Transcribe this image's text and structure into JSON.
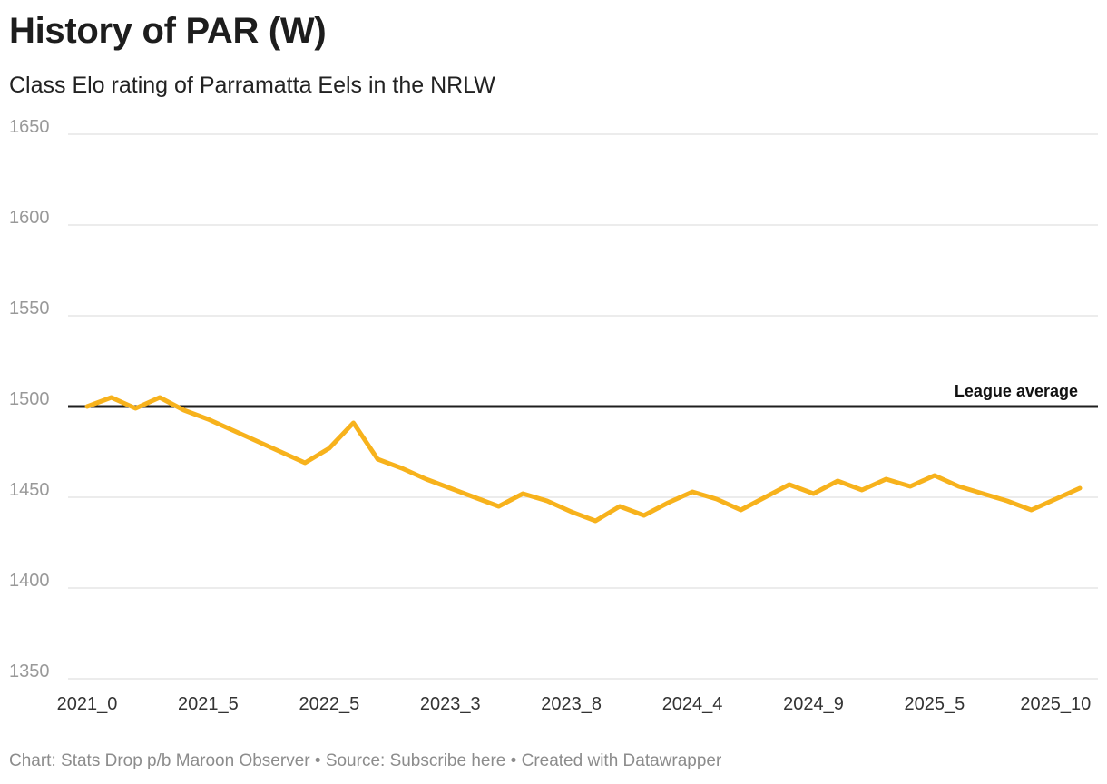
{
  "header": {
    "title": "History of PAR (W)",
    "subtitle": "Class Elo rating of Parramatta Eels in the NRLW"
  },
  "footer": {
    "chart_credit": "Chart: Stats Drop p/b Maroon Observer",
    "separator": "•",
    "source": "Source: Subscribe here",
    "created_with": "Created with Datawrapper"
  },
  "colors": {
    "line": "#f7b21c",
    "reference": "#1f1f1f",
    "grid": "#e0e0e0",
    "tick_text": "#999999"
  },
  "chart_data": {
    "type": "line",
    "title": "History of PAR (W)",
    "subtitle": "Class Elo rating of Parramatta Eels in the NRLW",
    "xlabel": "",
    "ylabel": "",
    "ylim": [
      1350,
      1650
    ],
    "grid": true,
    "y_ticks": [
      1350,
      1400,
      1450,
      1500,
      1550,
      1600,
      1650
    ],
    "x_tick_labels": [
      "2021_0",
      "2021_5",
      "2022_5",
      "2023_3",
      "2023_8",
      "2024_4",
      "2024_9",
      "2025_5",
      "2025_10"
    ],
    "x_tick_indices": [
      0,
      5,
      10,
      15,
      20,
      25,
      30,
      35,
      40
    ],
    "reference_line": {
      "value": 1500,
      "label": "League average"
    },
    "series": [
      {
        "name": "PAR (W)",
        "values": [
          1500,
          1505,
          1499,
          1505,
          1498,
          1493,
          1487,
          1481,
          1475,
          1469,
          1477,
          1491,
          1471,
          1466,
          1460,
          1455,
          1450,
          1445,
          1452,
          1448,
          1442,
          1437,
          1445,
          1440,
          1447,
          1453,
          1449,
          1443,
          1450,
          1457,
          1452,
          1459,
          1454,
          1460,
          1456,
          1462,
          1456,
          1452,
          1448,
          1443,
          1449,
          1455
        ]
      }
    ]
  }
}
